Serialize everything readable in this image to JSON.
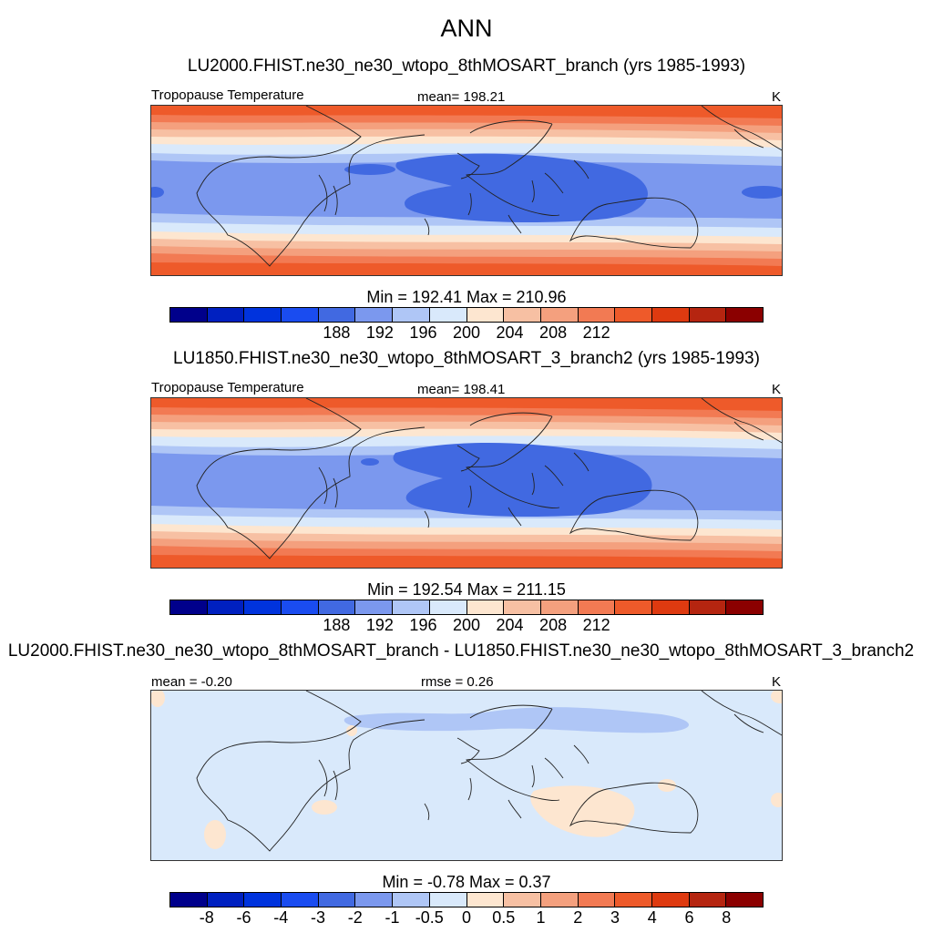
{
  "title": "ANN",
  "units": "K",
  "panels": [
    {
      "case": "LU2000.FHIST.ne30_ne30_wtopo_8thMOSART_branch (yrs 1985-1993)",
      "variable": "Tropopause Temperature",
      "stat": "mean= 198.21",
      "minmax": "Min = 192.41 Max = 210.96"
    },
    {
      "case": "LU1850.FHIST.ne30_ne30_wtopo_8thMOSART_3_branch2 (yrs 1985-1993)",
      "variable": "Tropopause Temperature",
      "stat": "mean= 198.41",
      "minmax": "Min = 192.54 Max = 211.15"
    },
    {
      "case": "LU2000.FHIST.ne30_ne30_wtopo_8thMOSART_branch - LU1850.FHIST.ne30_ne30_wtopo_8thMOSART_3_branch2",
      "mean_label": "mean =  -0.20",
      "rmse_label": "rmse =   0.26",
      "minmax": "Min =  -0.78 Max =   0.37"
    }
  ],
  "colorbar_abs": {
    "colors": [
      "#00008b",
      "#0020c0",
      "#0033dd",
      "#1a4cf0",
      "#4169e1",
      "#7b98ee",
      "#afc6f6",
      "#d9e9fb",
      "#fde6d0",
      "#f7c0a3",
      "#f4a07e",
      "#f27a53",
      "#ee5a2a",
      "#de3a10",
      "#b52510",
      "#8b0000"
    ],
    "ticks": [
      "188",
      "192",
      "196",
      "200",
      "204",
      "208",
      "212"
    ]
  },
  "colorbar_diff": {
    "colors": [
      "#00008b",
      "#0020c0",
      "#0033dd",
      "#1a4cf0",
      "#4169e1",
      "#7b98ee",
      "#afc6f6",
      "#d9e9fb",
      "#fde6d0",
      "#f7c0a3",
      "#f4a07e",
      "#f27a53",
      "#ee5a2a",
      "#de3a10",
      "#b52510",
      "#8b0000"
    ],
    "ticks": [
      "-8",
      "-6",
      "-4",
      "-3",
      "-2",
      "-1",
      "-0.5",
      "0",
      "0.5",
      "1",
      "2",
      "3",
      "4",
      "6",
      "8"
    ]
  },
  "field_colors": {
    "band_deep": "#4169e1",
    "band_mid": "#7b98ee",
    "band_light": "#afc6f6",
    "band_pale": "#d9e9fb",
    "warm_1": "#fde6d0",
    "warm_2": "#f7c0a3",
    "warm_3": "#f4a07e",
    "warm_4": "#f27a53",
    "warm_5": "#ee5a2a",
    "diff_bg": "#d9e9fb",
    "diff_neg": "#afc6f6",
    "diff_pos": "#fde6d0"
  }
}
